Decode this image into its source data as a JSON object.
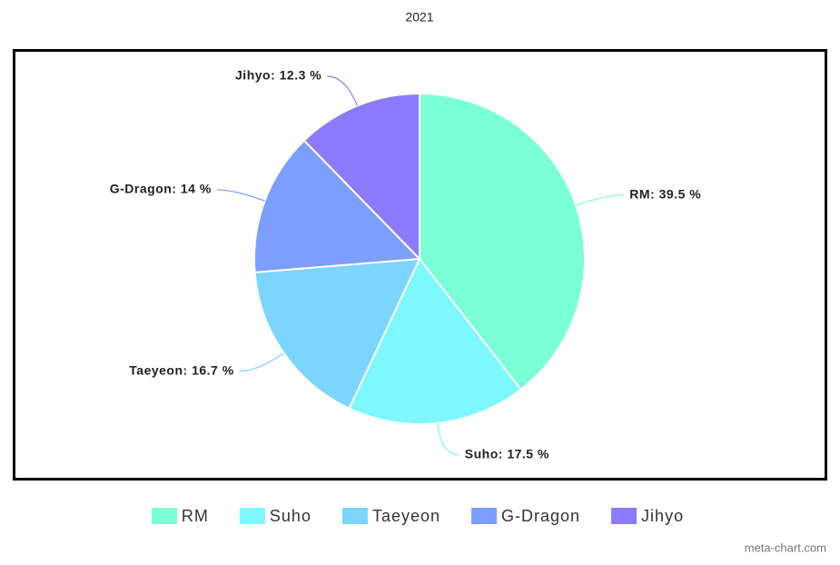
{
  "chart_data": {
    "type": "pie",
    "title": "2021",
    "categories": [
      "RM",
      "Suho",
      "Taeyeon",
      "G-Dragon",
      "Jihyo"
    ],
    "values": [
      39.5,
      17.5,
      16.7,
      14,
      12.3
    ],
    "value_labels": [
      "RM: 39.5 %",
      "Suho: 17.5 %",
      "Taeyeon: 16.7 %",
      "G-Dragon: 14 %",
      "Jihyo: 12.3 %"
    ],
    "colors": [
      "#7bffd7",
      "#7ef8ff",
      "#7bd5ff",
      "#7b9eff",
      "#8c7aff"
    ],
    "legend": "bottom",
    "watermark": "meta-chart.com"
  }
}
